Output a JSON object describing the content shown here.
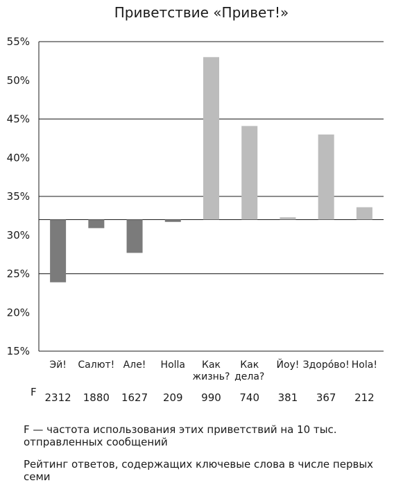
{
  "chart_data": {
    "type": "bar",
    "title": "Приветствие «Привет!»",
    "baseline": 32,
    "ylim": [
      15,
      55
    ],
    "yticks": [
      15,
      20,
      25,
      30,
      35,
      40,
      45,
      50,
      55
    ],
    "ytick_labels": [
      "15%",
      "20%",
      "25%",
      "30%",
      "35%",
      "40%",
      "45%",
      "50%",
      "55%"
    ],
    "gridlines": [
      15,
      25,
      35,
      45,
      55
    ],
    "categories": [
      [
        "Эй!"
      ],
      [
        "Салют!"
      ],
      [
        "Але!"
      ],
      [
        "Holla"
      ],
      [
        "Как",
        "жизнь?"
      ],
      [
        "Как",
        "дела?"
      ],
      [
        "Йоу!"
      ],
      [
        "Здоро́во!"
      ],
      [
        "Hola!"
      ]
    ],
    "values": [
      23.9,
      30.9,
      27.7,
      31.7,
      53.0,
      44.1,
      32.3,
      43.0,
      33.6
    ],
    "frequency_prefix": "F",
    "frequencies": [
      "2312",
      "1880",
      "1627",
      "209",
      "990",
      "740",
      "381",
      "367",
      "212"
    ],
    "colors": {
      "below": "#7b7b7b",
      "above": "#bcbcbc",
      "axis": "#1a1a1a",
      "grid": "#1a1a1a"
    }
  },
  "notes": [
    "F — частота использования этих приветствий на 10 тыс. отправленных сообщений",
    "Рейтинг ответов, содержащих ключевые слова в числе первых семи"
  ]
}
